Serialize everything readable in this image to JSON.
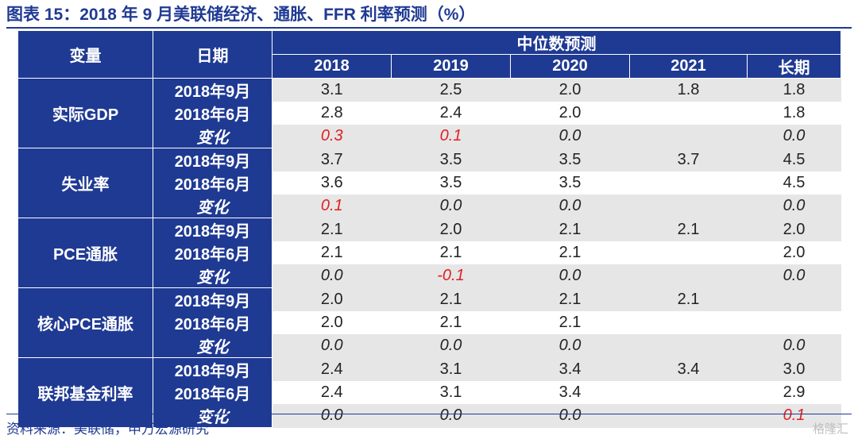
{
  "title": "图表 15：2018 年 9 月美联储经济、通胀、FFR 利率预测（%）",
  "source": "资料来源：美联储，申万宏源研究",
  "watermark": "格隆汇",
  "table": {
    "header_variable": "变量",
    "header_date": "日期",
    "header_group": "中位数预测",
    "years": [
      "2018",
      "2019",
      "2020",
      "2021",
      "长期"
    ],
    "groups": [
      {
        "name": "实际GDP",
        "rows": [
          {
            "label": "2018年9月",
            "values": [
              "3.1",
              "2.5",
              "2.0",
              "1.8",
              "1.8"
            ]
          },
          {
            "label": "2018年6月",
            "values": [
              "2.8",
              "2.4",
              "2.0",
              "",
              "1.8"
            ]
          },
          {
            "label": "变化",
            "values": [
              "0.3",
              "0.1",
              "0.0",
              "",
              "0.0"
            ]
          }
        ]
      },
      {
        "name": "失业率",
        "rows": [
          {
            "label": "2018年9月",
            "values": [
              "3.7",
              "3.5",
              "3.5",
              "3.7",
              "4.5"
            ]
          },
          {
            "label": "2018年6月",
            "values": [
              "3.6",
              "3.5",
              "3.5",
              "",
              "4.5"
            ]
          },
          {
            "label": "变化",
            "values": [
              "0.1",
              "0.0",
              "0.0",
              "",
              "0.0"
            ]
          }
        ]
      },
      {
        "name": "PCE通胀",
        "rows": [
          {
            "label": "2018年9月",
            "values": [
              "2.1",
              "2.0",
              "2.1",
              "2.1",
              "2.0"
            ]
          },
          {
            "label": "2018年6月",
            "values": [
              "2.1",
              "2.1",
              "2.1",
              "",
              "2.0"
            ]
          },
          {
            "label": "变化",
            "values": [
              "0.0",
              "-0.1",
              "0.0",
              "",
              "0.0"
            ]
          }
        ]
      },
      {
        "name": "核心PCE通胀",
        "rows": [
          {
            "label": "2018年9月",
            "values": [
              "2.0",
              "2.1",
              "2.1",
              "2.1",
              ""
            ]
          },
          {
            "label": "2018年6月",
            "values": [
              "2.0",
              "2.1",
              "2.1",
              "",
              ""
            ]
          },
          {
            "label": "变化",
            "values": [
              "0.0",
              "0.0",
              "0.0",
              "",
              "0.0"
            ]
          }
        ]
      },
      {
        "name": "联邦基金利率",
        "rows": [
          {
            "label": "2018年9月",
            "values": [
              "2.4",
              "3.1",
              "3.4",
              "3.4",
              "3.0"
            ]
          },
          {
            "label": "2018年6月",
            "values": [
              "2.4",
              "3.1",
              "3.4",
              "",
              "2.9"
            ]
          },
          {
            "label": "变化",
            "values": [
              "0.0",
              "0.0",
              "0.0",
              "",
              "0.1"
            ]
          }
        ]
      }
    ]
  },
  "colors": {
    "header_bg": "#1f3a93",
    "stripe": "#e6e6e6",
    "change_nonzero": "#e02020"
  }
}
